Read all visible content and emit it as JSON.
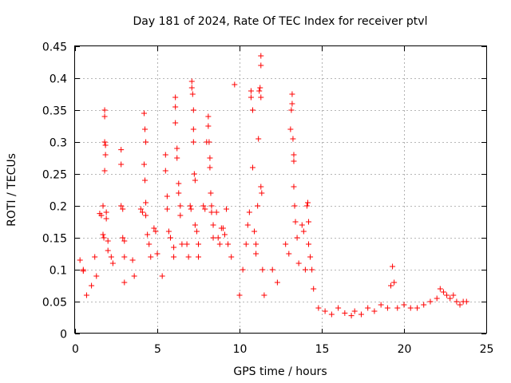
{
  "chart_data": {
    "type": "scatter",
    "title": "Day 181 of 2024, Rate Of TEC Index for receiver ptvl",
    "xlabel": "GPS time / hours",
    "ylabel": "ROTI / TECUs",
    "xlim": [
      0,
      25
    ],
    "ylim": [
      0,
      0.45
    ],
    "xticks": [
      0,
      5,
      10,
      15,
      20,
      25
    ],
    "yticks": [
      0,
      0.05,
      0.1,
      0.15,
      0.2,
      0.25,
      0.3,
      0.35,
      0.4,
      0.45
    ],
    "grid": true,
    "marker": "+",
    "colors": {
      "series": "#ff0000",
      "axes": "#000000",
      "grid": "#a0a0a0"
    },
    "series": [
      {
        "name": "",
        "points": [
          [
            0.3,
            0.115
          ],
          [
            0.5,
            0.1
          ],
          [
            0.5,
            0.098
          ],
          [
            0.7,
            0.06
          ],
          [
            1.0,
            0.075
          ],
          [
            1.2,
            0.12
          ],
          [
            1.3,
            0.09
          ],
          [
            1.5,
            0.188
          ],
          [
            1.6,
            0.185
          ],
          [
            1.7,
            0.155
          ],
          [
            1.7,
            0.2
          ],
          [
            1.75,
            0.15
          ],
          [
            1.8,
            0.35
          ],
          [
            1.8,
            0.34
          ],
          [
            1.8,
            0.3
          ],
          [
            1.85,
            0.295
          ],
          [
            1.85,
            0.28
          ],
          [
            1.8,
            0.255
          ],
          [
            1.9,
            0.18
          ],
          [
            1.9,
            0.19
          ],
          [
            2.0,
            0.145
          ],
          [
            2.0,
            0.13
          ],
          [
            2.2,
            0.12
          ],
          [
            2.3,
            0.11
          ],
          [
            2.8,
            0.288
          ],
          [
            2.8,
            0.265
          ],
          [
            2.8,
            0.2
          ],
          [
            2.9,
            0.195
          ],
          [
            2.9,
            0.15
          ],
          [
            3.0,
            0.145
          ],
          [
            3.0,
            0.12
          ],
          [
            3.0,
            0.08
          ],
          [
            3.5,
            0.115
          ],
          [
            3.6,
            0.09
          ],
          [
            4.0,
            0.195
          ],
          [
            4.1,
            0.19
          ],
          [
            4.2,
            0.345
          ],
          [
            4.25,
            0.32
          ],
          [
            4.3,
            0.3
          ],
          [
            4.2,
            0.265
          ],
          [
            4.25,
            0.24
          ],
          [
            4.3,
            0.205
          ],
          [
            4.3,
            0.185
          ],
          [
            4.4,
            0.155
          ],
          [
            4.5,
            0.14
          ],
          [
            4.6,
            0.12
          ],
          [
            4.8,
            0.165
          ],
          [
            4.9,
            0.16
          ],
          [
            5.0,
            0.125
          ],
          [
            5.3,
            0.09
          ],
          [
            5.5,
            0.28
          ],
          [
            5.5,
            0.255
          ],
          [
            5.6,
            0.215
          ],
          [
            5.6,
            0.195
          ],
          [
            5.7,
            0.16
          ],
          [
            5.8,
            0.15
          ],
          [
            6.0,
            0.135
          ],
          [
            6.0,
            0.12
          ],
          [
            6.1,
            0.37
          ],
          [
            6.1,
            0.355
          ],
          [
            6.1,
            0.33
          ],
          [
            6.2,
            0.29
          ],
          [
            6.2,
            0.275
          ],
          [
            6.3,
            0.235
          ],
          [
            6.3,
            0.22
          ],
          [
            6.4,
            0.2
          ],
          [
            6.4,
            0.185
          ],
          [
            6.5,
            0.14
          ],
          [
            6.8,
            0.14
          ],
          [
            6.9,
            0.12
          ],
          [
            7.0,
            0.2
          ],
          [
            7.05,
            0.195
          ],
          [
            7.1,
            0.395
          ],
          [
            7.1,
            0.385
          ],
          [
            7.15,
            0.375
          ],
          [
            7.2,
            0.35
          ],
          [
            7.2,
            0.32
          ],
          [
            7.2,
            0.3
          ],
          [
            7.25,
            0.25
          ],
          [
            7.3,
            0.24
          ],
          [
            7.3,
            0.17
          ],
          [
            7.4,
            0.16
          ],
          [
            7.5,
            0.14
          ],
          [
            7.5,
            0.12
          ],
          [
            7.8,
            0.2
          ],
          [
            7.9,
            0.195
          ],
          [
            8.0,
            0.3
          ],
          [
            8.1,
            0.34
          ],
          [
            8.1,
            0.325
          ],
          [
            8.15,
            0.3
          ],
          [
            8.2,
            0.275
          ],
          [
            8.2,
            0.26
          ],
          [
            8.25,
            0.22
          ],
          [
            8.3,
            0.2
          ],
          [
            8.3,
            0.19
          ],
          [
            8.4,
            0.17
          ],
          [
            8.4,
            0.15
          ],
          [
            8.6,
            0.19
          ],
          [
            8.7,
            0.15
          ],
          [
            8.8,
            0.14
          ],
          [
            8.9,
            0.165
          ],
          [
            9.0,
            0.165
          ],
          [
            9.1,
            0.155
          ],
          [
            9.2,
            0.195
          ],
          [
            9.3,
            0.14
          ],
          [
            9.5,
            0.12
          ],
          [
            9.7,
            0.39
          ],
          [
            10.0,
            0.06
          ],
          [
            10.2,
            0.1
          ],
          [
            10.4,
            0.14
          ],
          [
            10.5,
            0.17
          ],
          [
            10.6,
            0.19
          ],
          [
            10.7,
            0.37
          ],
          [
            10.7,
            0.38
          ],
          [
            10.8,
            0.35
          ],
          [
            10.8,
            0.26
          ],
          [
            10.9,
            0.16
          ],
          [
            11.0,
            0.14
          ],
          [
            11.0,
            0.125
          ],
          [
            11.1,
            0.2
          ],
          [
            11.15,
            0.305
          ],
          [
            11.2,
            0.38
          ],
          [
            11.25,
            0.385
          ],
          [
            11.3,
            0.435
          ],
          [
            11.3,
            0.42
          ],
          [
            11.3,
            0.37
          ],
          [
            11.3,
            0.23
          ],
          [
            11.35,
            0.22
          ],
          [
            11.4,
            0.1
          ],
          [
            11.5,
            0.06
          ],
          [
            12.0,
            0.1
          ],
          [
            12.3,
            0.08
          ],
          [
            12.8,
            0.14
          ],
          [
            13.0,
            0.125
          ],
          [
            13.1,
            0.32
          ],
          [
            13.15,
            0.35
          ],
          [
            13.2,
            0.375
          ],
          [
            13.2,
            0.36
          ],
          [
            13.25,
            0.305
          ],
          [
            13.3,
            0.28
          ],
          [
            13.3,
            0.27
          ],
          [
            13.3,
            0.23
          ],
          [
            13.35,
            0.2
          ],
          [
            13.4,
            0.175
          ],
          [
            13.5,
            0.15
          ],
          [
            13.6,
            0.11
          ],
          [
            13.8,
            0.17
          ],
          [
            13.9,
            0.16
          ],
          [
            14.0,
            0.1
          ],
          [
            14.1,
            0.2
          ],
          [
            14.15,
            0.205
          ],
          [
            14.2,
            0.175
          ],
          [
            14.2,
            0.14
          ],
          [
            14.3,
            0.12
          ],
          [
            14.4,
            0.1
          ],
          [
            14.5,
            0.07
          ],
          [
            14.8,
            0.04
          ],
          [
            15.2,
            0.035
          ],
          [
            15.6,
            0.03
          ],
          [
            16.0,
            0.04
          ],
          [
            16.4,
            0.032
          ],
          [
            16.8,
            0.028
          ],
          [
            17.0,
            0.035
          ],
          [
            17.4,
            0.03
          ],
          [
            17.8,
            0.04
          ],
          [
            18.2,
            0.035
          ],
          [
            18.6,
            0.045
          ],
          [
            19.0,
            0.04
          ],
          [
            19.2,
            0.075
          ],
          [
            19.3,
            0.105
          ],
          [
            19.4,
            0.08
          ],
          [
            19.6,
            0.04
          ],
          [
            20.0,
            0.045
          ],
          [
            20.4,
            0.04
          ],
          [
            20.8,
            0.04
          ],
          [
            21.2,
            0.045
          ],
          [
            21.6,
            0.05
          ],
          [
            22.0,
            0.055
          ],
          [
            22.2,
            0.07
          ],
          [
            22.4,
            0.065
          ],
          [
            22.6,
            0.06
          ],
          [
            22.8,
            0.055
          ],
          [
            23.0,
            0.06
          ],
          [
            23.2,
            0.05
          ],
          [
            23.4,
            0.045
          ],
          [
            23.6,
            0.05
          ],
          [
            23.8,
            0.05
          ]
        ]
      }
    ]
  }
}
